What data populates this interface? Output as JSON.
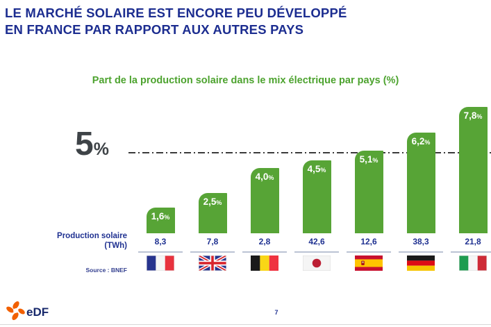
{
  "slide": {
    "title_line1": "LE MARCHÉ SOLAIRE EST ENCORE PEU DÉVELOPPÉ",
    "title_line2": "EN FRANCE PAR RAPPORT AUX AUTRES PAYS",
    "page_number": "7",
    "logo_text": "eDF"
  },
  "chart_data": {
    "type": "bar",
    "title": "Part de la production solaire dans le mix électrique par pays (%)",
    "categories": [
      "France",
      "Royaume-Uni",
      "Belgique",
      "Japon",
      "Espagne",
      "Allemagne",
      "Italie"
    ],
    "series": [
      {
        "name": "Part de la production solaire dans le mix électrique (%)",
        "values": [
          1.6,
          2.5,
          4.0,
          4.5,
          5.1,
          6.2,
          7.8
        ]
      },
      {
        "name": "Production solaire (TWh)",
        "values": [
          8.3,
          7.8,
          2.8,
          42.6,
          12.6,
          38.3,
          21.8
        ]
      }
    ],
    "value_labels": [
      "1,6",
      "2,5",
      "4,0",
      "4,5",
      "5,1",
      "6,2",
      "7,8"
    ],
    "percent_suffix": "%",
    "twh_labels": [
      "8,3",
      "7,8",
      "2,8",
      "42,6",
      "12,6",
      "38,3",
      "21,8"
    ],
    "row_label_line1": "Production solaire",
    "row_label_line2": "(TWh)",
    "reference_line": {
      "value": 5,
      "label_number": "5",
      "label_suffix": "%"
    },
    "ylim": [
      0,
      8.5
    ],
    "grid": false,
    "legend": "none",
    "bar_color": "#57A436",
    "accent_green": "#4DA32F",
    "accent_navy": "#1C2D90",
    "source": "Source : BNEF"
  }
}
